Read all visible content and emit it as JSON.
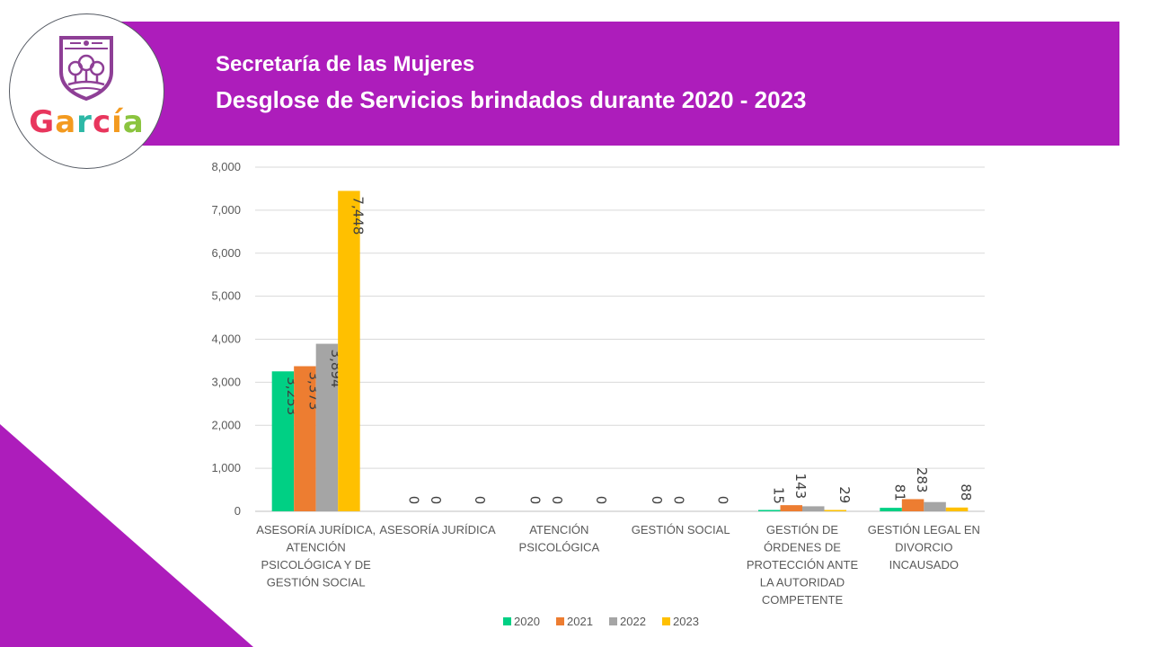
{
  "header": {
    "title": "Secretaría de las Mujeres",
    "subtitle": "Desglose de Servicios brindados durante 2020 - 2023"
  },
  "logo": {
    "letters": [
      "G",
      "a",
      "r",
      "c",
      "í",
      "a"
    ],
    "letter_colors": [
      "#e8365d",
      "#f39a1f",
      "#2db8a6",
      "#e8365d",
      "#f39a1f",
      "#8bc43f"
    ],
    "shield_color": "#8e3f96"
  },
  "colors": {
    "banner": "#ad1dbb",
    "accent_triangle": "#ad1dbb",
    "grid": "#d9d9d9",
    "axis": "#bfbfbf"
  },
  "chart_data": {
    "type": "bar",
    "title": "",
    "xlabel": "",
    "ylabel": "",
    "ylim": [
      0,
      8000
    ],
    "yticks": [
      0,
      1000,
      2000,
      3000,
      4000,
      5000,
      6000,
      7000,
      8000
    ],
    "ytick_labels": [
      "0",
      "1,000",
      "2,000",
      "3,000",
      "4,000",
      "5,000",
      "6,000",
      "7,000",
      "8,000"
    ],
    "grid": true,
    "legend_position": "bottom",
    "categories": [
      [
        "ASESORÍA JURÍDICA,",
        "ATENCIÓN",
        "PSICOLÓGICA Y DE",
        "GESTIÓN SOCIAL"
      ],
      [
        "ASESORÍA JURÍDICA"
      ],
      [
        "ATENCIÓN",
        "PSICOLÓGICA"
      ],
      [
        "GESTIÓN SOCIAL"
      ],
      [
        "GESTIÓN DE",
        "ÓRDENES DE",
        "PROTECCIÓN ANTE",
        "LA AUTORIDAD",
        "COMPETENTE"
      ],
      [
        "GESTIÓN LEGAL EN",
        "DIVORCIO",
        "INCAUSADO"
      ]
    ],
    "series": [
      {
        "name": "2020",
        "color": "#00d084",
        "values": [
          3253,
          0,
          0,
          0,
          15,
          81
        ],
        "labels": [
          "3,253",
          "0",
          "0",
          "0",
          "15",
          "81"
        ]
      },
      {
        "name": "2021",
        "color": "#ed7d31",
        "values": [
          3373,
          0,
          0,
          0,
          143,
          283
        ],
        "labels": [
          "3,373",
          "0",
          "0",
          "0",
          "143",
          "283"
        ]
      },
      {
        "name": "2022",
        "color": "#a5a5a5",
        "values": [
          3894,
          null,
          null,
          null,
          117,
          215
        ],
        "labels": [
          "3,894",
          null,
          null,
          null,
          null,
          null
        ]
      },
      {
        "name": "2023",
        "color": "#ffc000",
        "values": [
          7448,
          0,
          0,
          0,
          29,
          88
        ],
        "labels": [
          "7,448",
          "0",
          "0",
          "0",
          "29",
          "88"
        ]
      }
    ]
  }
}
